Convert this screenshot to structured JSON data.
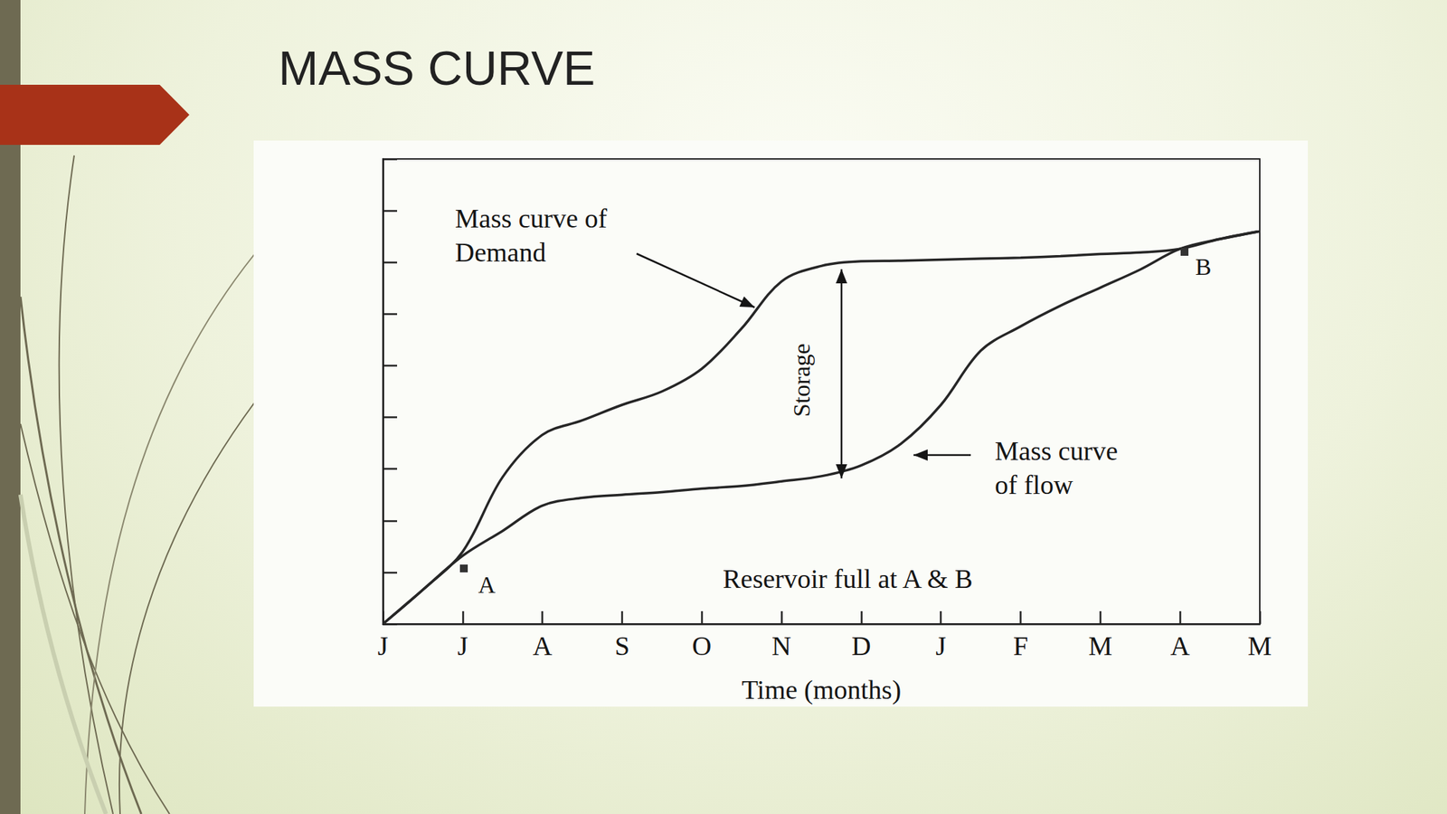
{
  "chart_data": {
    "type": "line",
    "title": "MASS CURVE",
    "x_label": "Time (months)",
    "categories": [
      "J",
      null,
      "J",
      null,
      "A",
      null,
      "S",
      null,
      "O",
      null,
      "N",
      null,
      "D",
      null,
      "J",
      null,
      "F",
      null,
      "M",
      null,
      "A",
      null,
      "M"
    ],
    "series": [
      {
        "name": "Mass curve of\nDemand",
        "color": "#262626",
        "values": [
          0,
          0.66,
          1.4,
          2.84,
          3.66,
          3.94,
          4.24,
          4.5,
          4.94,
          5.72,
          6.63,
          6.93,
          7.02,
          7.03,
          7.05,
          7.07,
          7.09,
          7.12,
          7.16,
          7.19,
          7.26,
          7.45,
          7.6
        ]
      },
      {
        "name": "Mass curve\nof flow",
        "color": "#262626",
        "values": [
          0,
          0.66,
          1.32,
          1.8,
          2.29,
          2.44,
          2.5,
          2.55,
          2.62,
          2.67,
          2.76,
          2.86,
          3.07,
          3.49,
          4.24,
          5.29,
          5.76,
          6.16,
          6.51,
          6.86,
          7.26,
          7.45,
          7.6
        ]
      }
    ],
    "annotations": [
      "Storage",
      "Reservoir full at A & B",
      "A",
      "B"
    ],
    "ylim": [
      0,
      9
    ],
    "yticks": [
      0,
      1,
      2,
      3,
      4,
      5,
      6,
      7,
      8,
      9
    ],
    "tick_labels": "x",
    "grid": false,
    "marker": "none",
    "line_style": "solid"
  }
}
